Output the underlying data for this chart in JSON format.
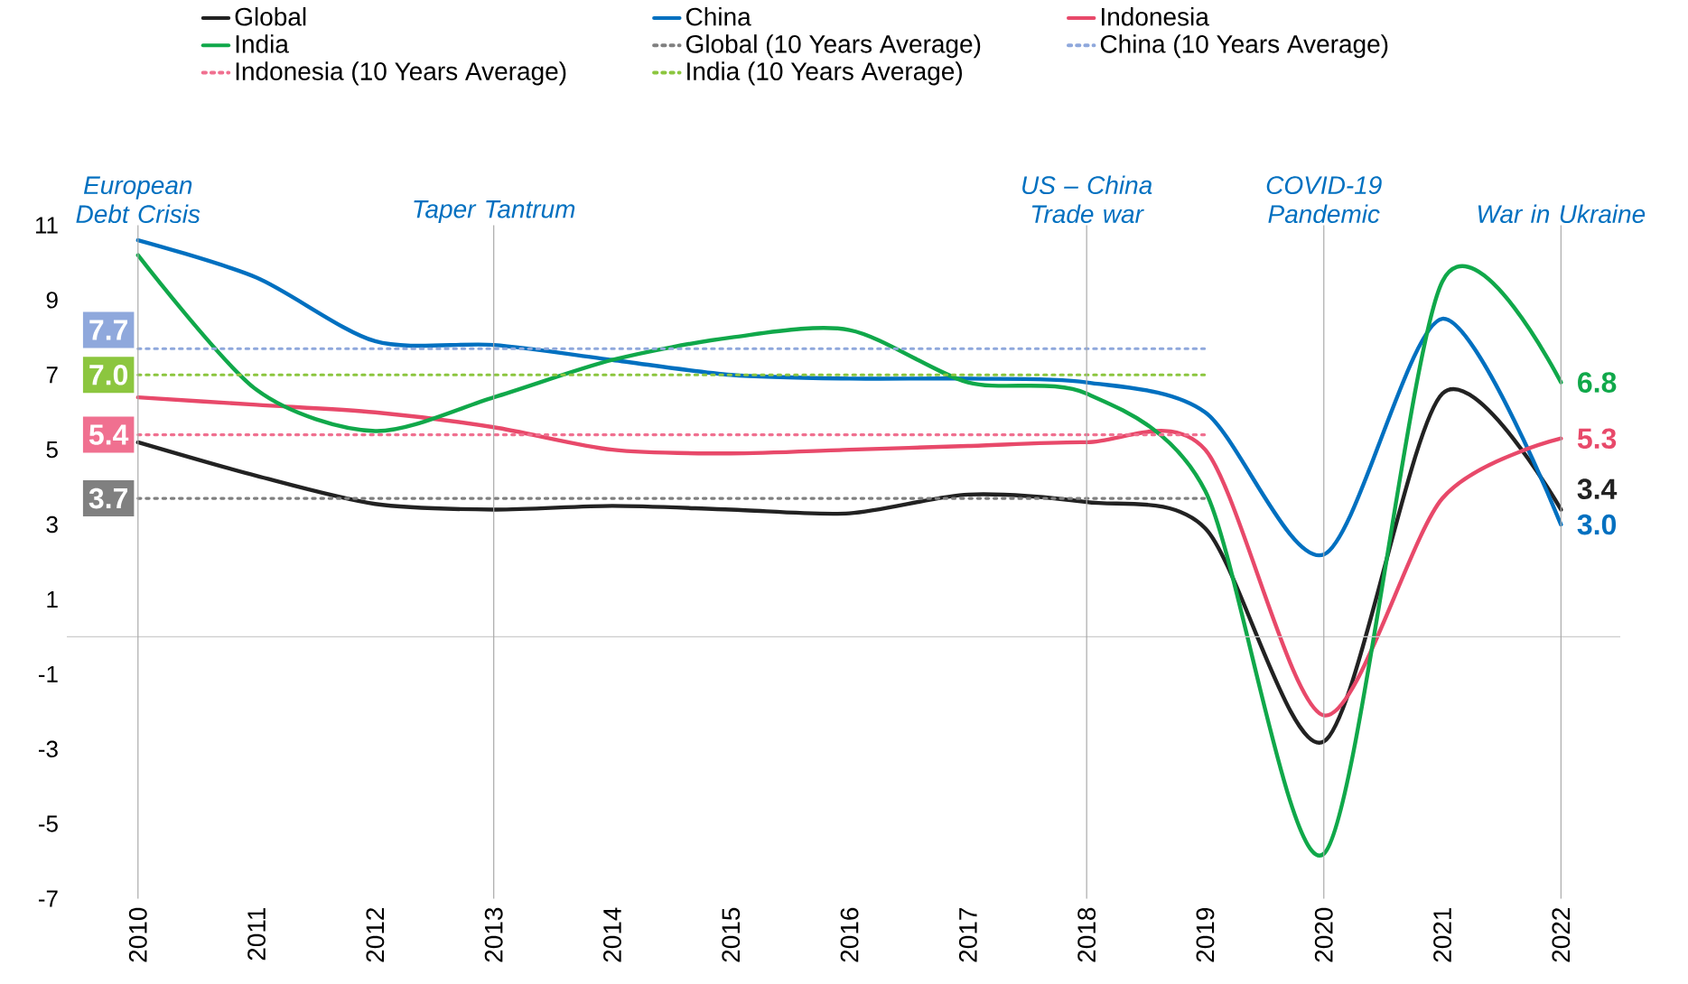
{
  "chart_data": {
    "type": "line",
    "legend": "top",
    "xlim": [
      2009.4,
      2022.5
    ],
    "ylim": [
      -7,
      11
    ],
    "xticks": [
      2010,
      2011,
      2012,
      2013,
      2014,
      2015,
      2016,
      2017,
      2018,
      2019,
      2020,
      2021,
      2022
    ],
    "yticks": [
      -7,
      -5,
      -3,
      -1,
      1,
      3,
      5,
      7,
      9,
      11
    ],
    "series": [
      {
        "name": "Global",
        "color": "#222222",
        "x": [
          2010,
          2011,
          2012,
          2013,
          2014,
          2015,
          2016,
          2017,
          2018,
          2019,
          2020,
          2021,
          2022
        ],
        "values": [
          5.2,
          4.3,
          3.55,
          3.4,
          3.5,
          3.4,
          3.3,
          3.8,
          3.6,
          2.9,
          -2.8,
          6.5,
          3.4
        ],
        "value_labels": [
          null,
          null,
          null,
          null,
          null,
          null,
          null,
          null,
          null,
          null,
          null,
          null,
          "3.4"
        ]
      },
      {
        "name": "China",
        "color": "#0070c0",
        "x": [
          2010,
          2011,
          2012,
          2013,
          2014,
          2015,
          2016,
          2017,
          2018,
          2019,
          2020,
          2021,
          2022
        ],
        "values": [
          10.6,
          9.6,
          7.9,
          7.8,
          7.4,
          7.0,
          6.9,
          6.9,
          6.8,
          6.0,
          2.2,
          8.5,
          3.0
        ],
        "value_labels": [
          null,
          null,
          null,
          null,
          null,
          null,
          null,
          null,
          null,
          null,
          null,
          null,
          "3.0"
        ]
      },
      {
        "name": "Indonesia",
        "color": "#e8496a",
        "x": [
          2010,
          2011,
          2012,
          2013,
          2014,
          2015,
          2016,
          2017,
          2018,
          2019,
          2020,
          2021,
          2022
        ],
        "values": [
          6.4,
          6.2,
          6.0,
          5.6,
          5.0,
          4.9,
          5.0,
          5.1,
          5.2,
          5.0,
          -2.1,
          3.7,
          5.3
        ],
        "value_labels": [
          null,
          null,
          null,
          null,
          null,
          null,
          null,
          null,
          null,
          null,
          null,
          null,
          "5.3"
        ]
      },
      {
        "name": "India",
        "color": "#10a84a",
        "x": [
          2010,
          2011,
          2012,
          2013,
          2014,
          2015,
          2016,
          2017,
          2018,
          2019,
          2020,
          2021,
          2022
        ],
        "values": [
          10.2,
          6.6,
          5.5,
          6.4,
          7.4,
          8.0,
          8.2,
          6.8,
          6.5,
          3.9,
          -5.8,
          9.5,
          6.8
        ],
        "value_labels": [
          null,
          null,
          null,
          null,
          null,
          null,
          null,
          null,
          null,
          null,
          null,
          null,
          "6.8"
        ]
      },
      {
        "name": "Global (10 Years Average)",
        "color": "#808080",
        "line_style": "dotted",
        "x": [
          2010,
          2019
        ],
        "values": [
          3.7,
          3.7
        ],
        "value_labels": [
          "3.7",
          null
        ]
      },
      {
        "name": "China (10 Years Average)",
        "color": "#8fa8dc",
        "line_style": "dotted",
        "x": [
          2010,
          2019
        ],
        "values": [
          7.7,
          7.7
        ],
        "value_labels": [
          "7.7",
          null
        ]
      },
      {
        "name": "Indonesia (10 Years Average)",
        "color": "#f07090",
        "line_style": "dotted",
        "x": [
          2010,
          2019
        ],
        "values": [
          5.4,
          5.4
        ],
        "value_labels": [
          "5.4",
          null
        ]
      },
      {
        "name": "India (10 Years Average)",
        "color": "#8cc63f",
        "line_style": "dotted",
        "x": [
          2010,
          2019
        ],
        "values": [
          7.0,
          7.0
        ],
        "value_labels": [
          "7.0",
          null
        ]
      }
    ],
    "ref_lines": [
      {
        "axis": "y",
        "value": 0,
        "color": "#cccccc"
      },
      {
        "axis": "x",
        "value": 2010,
        "label": "European Debt Crisis",
        "color": "#aaaaaa"
      },
      {
        "axis": "x",
        "value": 2013,
        "label": "Taper Tantrum",
        "color": "#aaaaaa"
      },
      {
        "axis": "x",
        "value": 2018,
        "label": "US – China Trade war",
        "color": "#aaaaaa"
      },
      {
        "axis": "x",
        "value": 2020,
        "label": "COVID-19 Pandemic",
        "color": "#aaaaaa"
      },
      {
        "axis": "x",
        "value": 2022,
        "label": "War in Ukraine",
        "color": "#aaaaaa"
      }
    ]
  }
}
